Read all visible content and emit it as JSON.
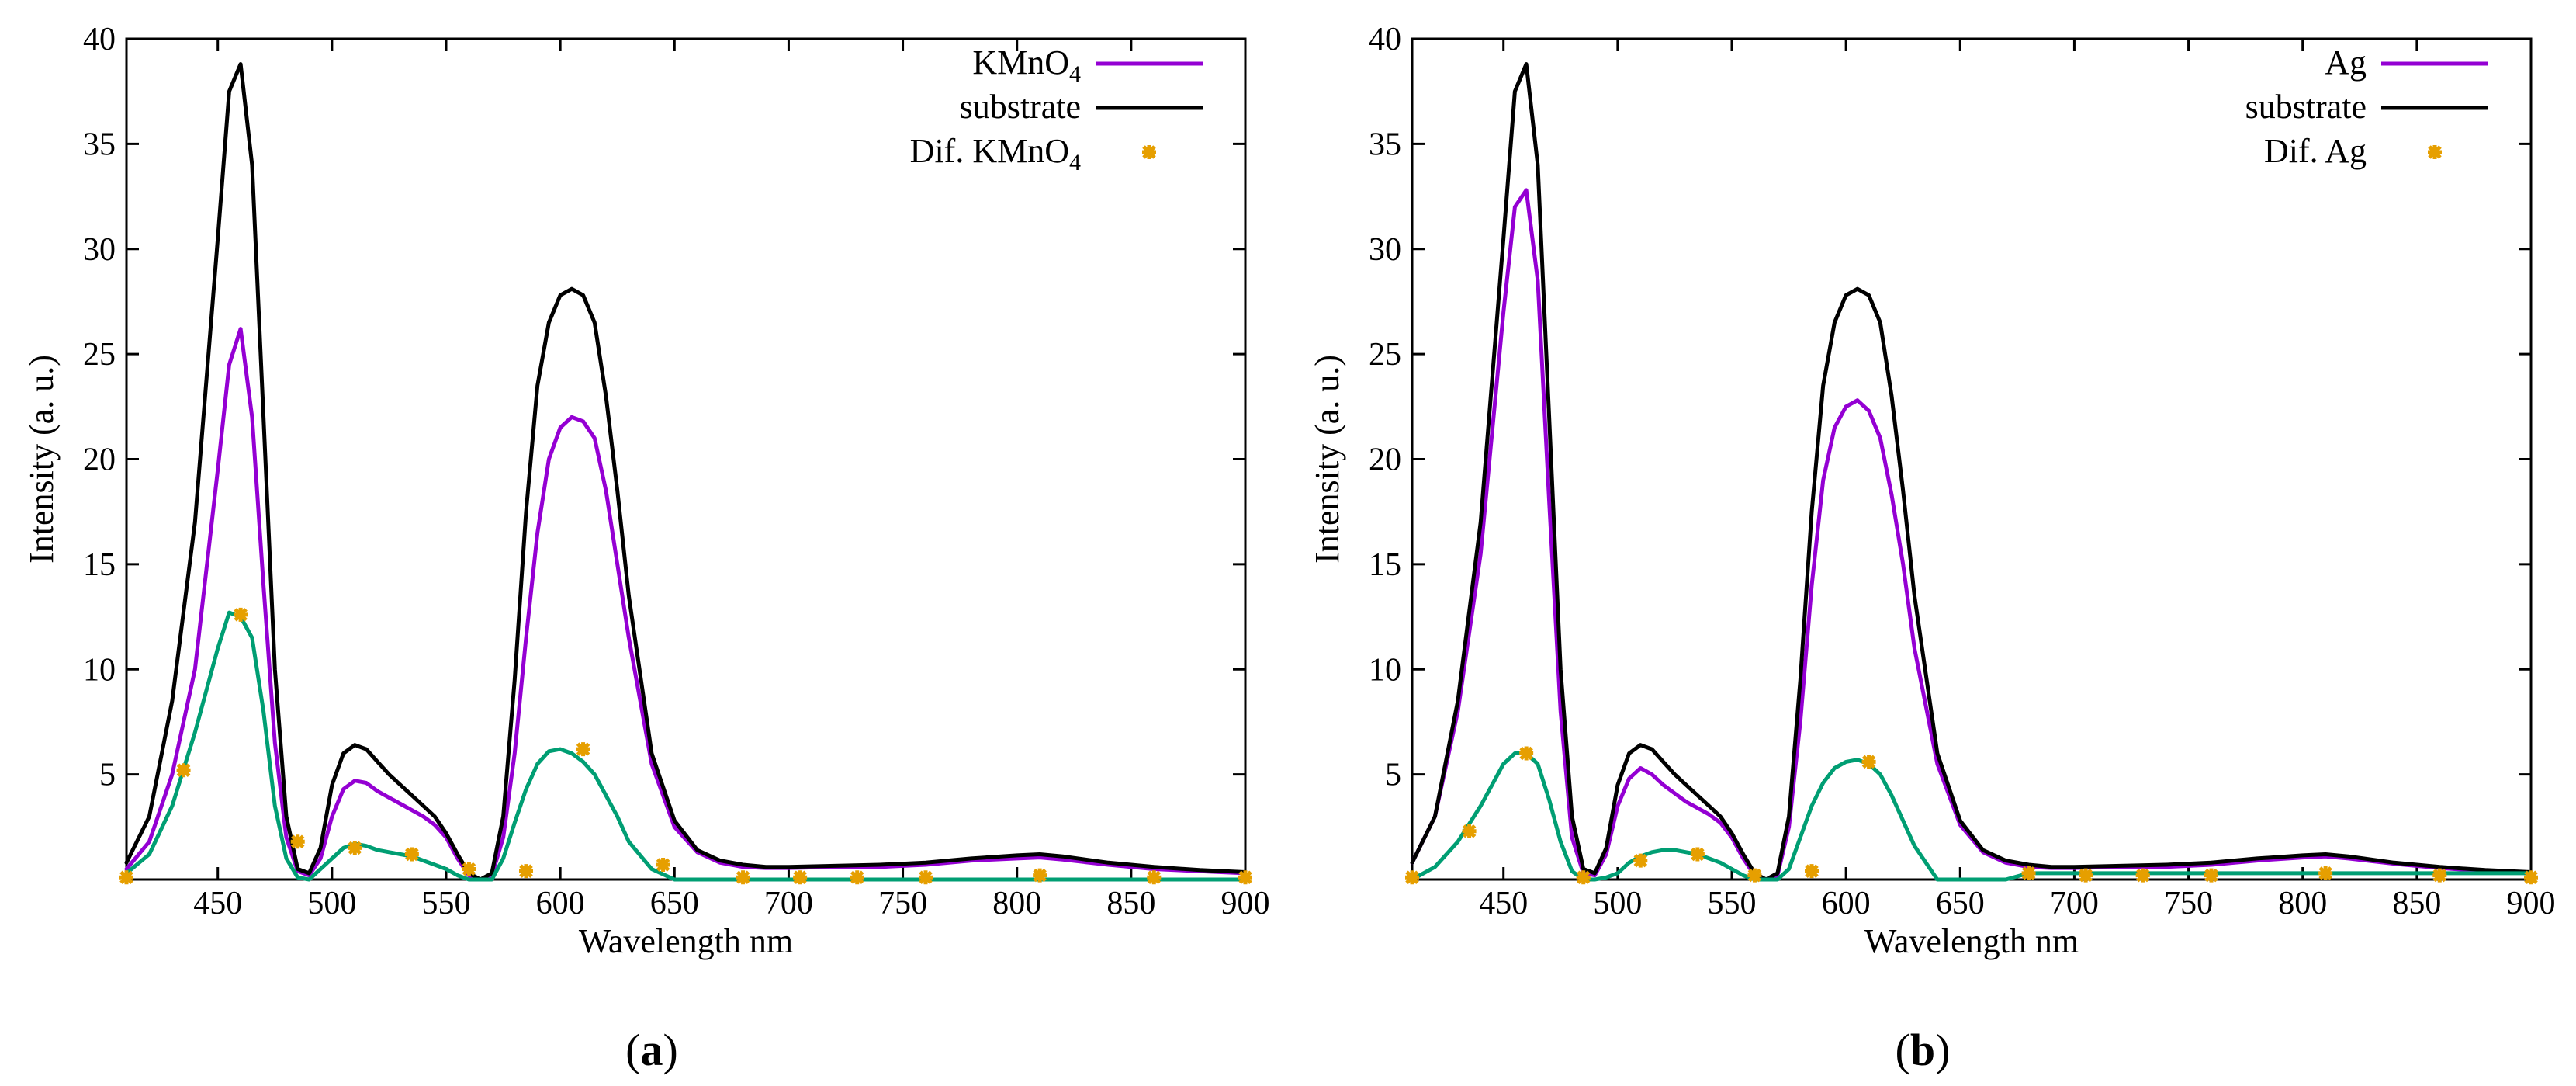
{
  "chart_data": [
    {
      "type": "line",
      "panel_label": "a",
      "xlabel": "Wavelength nm",
      "ylabel": "Intensity (a. u.)",
      "xlim": [
        410,
        900
      ],
      "ylim": [
        0,
        40
      ],
      "xticks": [
        450,
        500,
        550,
        600,
        650,
        700,
        750,
        800,
        850,
        900
      ],
      "yticks": [
        5,
        10,
        15,
        20,
        25,
        30,
        35,
        40
      ],
      "legend_position": "top-right",
      "colors": {
        "sample": "#9400d3",
        "substrate": "#000000",
        "dif_line": "#009e73",
        "dif_points": "#e69f00"
      },
      "series": [
        {
          "name": "KMnO4",
          "legend_main": "KMnO",
          "legend_sub": "4",
          "x": [
            410,
            420,
            430,
            440,
            450,
            455,
            460,
            465,
            470,
            475,
            480,
            485,
            490,
            495,
            500,
            505,
            510,
            515,
            520,
            525,
            530,
            535,
            540,
            545,
            550,
            555,
            560,
            565,
            570,
            575,
            580,
            585,
            590,
            595,
            600,
            605,
            610,
            615,
            620,
            625,
            630,
            640,
            650,
            660,
            670,
            680,
            690,
            700,
            720,
            740,
            760,
            780,
            800,
            810,
            820,
            840,
            860,
            880,
            900
          ],
          "y": [
            0.5,
            1.8,
            5.0,
            10.0,
            19.5,
            24.5,
            26.2,
            22.0,
            14.0,
            6.5,
            2.0,
            0.4,
            0.2,
            1.0,
            3.0,
            4.3,
            4.7,
            4.6,
            4.2,
            3.9,
            3.6,
            3.3,
            3.0,
            2.6,
            2.0,
            1.0,
            0.2,
            0.0,
            0.2,
            2.0,
            6.0,
            11.5,
            16.5,
            20.0,
            21.5,
            22.0,
            21.8,
            21.0,
            18.5,
            15.0,
            11.5,
            5.5,
            2.5,
            1.3,
            0.8,
            0.6,
            0.55,
            0.55,
            0.6,
            0.6,
            0.7,
            0.9,
            1.0,
            1.05,
            0.95,
            0.7,
            0.5,
            0.4,
            0.3
          ]
        },
        {
          "name": "substrate",
          "legend_main": "substrate",
          "x": [
            410,
            420,
            430,
            440,
            450,
            455,
            460,
            465,
            470,
            475,
            480,
            485,
            490,
            495,
            500,
            505,
            510,
            515,
            520,
            525,
            530,
            535,
            540,
            545,
            550,
            555,
            560,
            565,
            570,
            575,
            580,
            585,
            590,
            595,
            600,
            605,
            610,
            615,
            620,
            625,
            630,
            640,
            650,
            660,
            670,
            680,
            690,
            700,
            720,
            740,
            760,
            780,
            800,
            810,
            820,
            840,
            860,
            880,
            900
          ],
          "y": [
            0.8,
            3.0,
            8.5,
            17.0,
            30.5,
            37.5,
            38.8,
            34.0,
            22.0,
            10.0,
            3.0,
            0.5,
            0.3,
            1.5,
            4.5,
            6.0,
            6.4,
            6.2,
            5.6,
            5.0,
            4.5,
            4.0,
            3.5,
            3.0,
            2.2,
            1.2,
            0.3,
            0.0,
            0.3,
            3.0,
            9.5,
            17.5,
            23.5,
            26.5,
            27.8,
            28.1,
            27.8,
            26.5,
            23.0,
            18.5,
            13.5,
            6.0,
            2.8,
            1.4,
            0.9,
            0.7,
            0.6,
            0.6,
            0.65,
            0.7,
            0.8,
            1.0,
            1.15,
            1.2,
            1.1,
            0.8,
            0.6,
            0.45,
            0.35
          ]
        },
        {
          "name": "Dif. KMnO4",
          "legend_main": "Dif. KMnO",
          "legend_sub": "4",
          "x": [
            410,
            420,
            430,
            440,
            450,
            455,
            460,
            465,
            470,
            475,
            480,
            485,
            490,
            495,
            500,
            505,
            510,
            515,
            520,
            525,
            530,
            535,
            540,
            545,
            550,
            555,
            560,
            565,
            570,
            575,
            580,
            585,
            590,
            595,
            600,
            605,
            610,
            615,
            620,
            625,
            630,
            640,
            650,
            660,
            670,
            680,
            690,
            700,
            720,
            740,
            760,
            780,
            800,
            810,
            820,
            840,
            860,
            880,
            900
          ],
          "y": [
            0.3,
            1.2,
            3.5,
            7.0,
            11.0,
            12.7,
            12.5,
            11.5,
            8.0,
            3.5,
            1.0,
            0.1,
            0.0,
            0.5,
            1.0,
            1.5,
            1.7,
            1.6,
            1.4,
            1.3,
            1.2,
            1.1,
            0.9,
            0.7,
            0.5,
            0.2,
            0.0,
            0.0,
            0.0,
            1.0,
            2.7,
            4.3,
            5.5,
            6.1,
            6.2,
            6.0,
            5.6,
            5.0,
            4.0,
            3.0,
            1.8,
            0.5,
            0.0,
            0.0,
            0.0,
            0.0,
            0.0,
            0.0,
            0.0,
            0.0,
            0.0,
            0.0,
            0.0,
            0.0,
            0.0,
            0.0,
            0.0,
            0.0,
            0.0
          ]
        },
        {
          "name": "Dif. KMnO4 markers",
          "style": "points",
          "x": [
            410,
            435,
            460,
            485,
            510,
            535,
            560,
            585,
            610,
            645,
            680,
            705,
            730,
            760,
            810,
            860,
            900
          ],
          "y": [
            0.1,
            5.2,
            12.6,
            1.8,
            1.5,
            1.2,
            0.5,
            0.4,
            6.2,
            0.7,
            0.1,
            0.1,
            0.1,
            0.1,
            0.2,
            0.1,
            0.1
          ]
        }
      ]
    },
    {
      "type": "line",
      "panel_label": "b",
      "xlabel": "Wavelength nm",
      "ylabel": "Intensity (a. u.)",
      "xlim": [
        410,
        900
      ],
      "ylim": [
        0,
        40
      ],
      "xticks": [
        450,
        500,
        550,
        600,
        650,
        700,
        750,
        800,
        850,
        900
      ],
      "yticks": [
        5,
        10,
        15,
        20,
        25,
        30,
        35,
        40
      ],
      "legend_position": "top-right",
      "colors": {
        "sample": "#9400d3",
        "substrate": "#000000",
        "dif_line": "#009e73",
        "dif_points": "#e69f00"
      },
      "series": [
        {
          "name": "Ag",
          "legend_main": "Ag",
          "x": [
            410,
            420,
            430,
            440,
            450,
            455,
            460,
            465,
            470,
            475,
            480,
            485,
            490,
            495,
            500,
            505,
            510,
            515,
            520,
            525,
            530,
            535,
            540,
            545,
            550,
            555,
            560,
            565,
            570,
            575,
            580,
            585,
            590,
            595,
            600,
            605,
            610,
            615,
            620,
            625,
            630,
            640,
            650,
            660,
            670,
            680,
            690,
            700,
            720,
            740,
            760,
            780,
            800,
            810,
            820,
            840,
            860,
            880,
            900
          ],
          "y": [
            0.8,
            3.0,
            8.0,
            15.5,
            27.0,
            32.0,
            32.8,
            28.5,
            18.0,
            8.0,
            2.0,
            0.3,
            0.2,
            1.2,
            3.5,
            4.8,
            5.3,
            5.0,
            4.5,
            4.1,
            3.7,
            3.4,
            3.1,
            2.7,
            2.0,
            1.0,
            0.2,
            0.0,
            0.2,
            2.5,
            7.5,
            14.0,
            19.0,
            21.5,
            22.5,
            22.8,
            22.3,
            21.0,
            18.3,
            15.0,
            11.0,
            5.5,
            2.6,
            1.3,
            0.8,
            0.6,
            0.55,
            0.55,
            0.6,
            0.6,
            0.7,
            0.9,
            1.05,
            1.1,
            1.0,
            0.75,
            0.55,
            0.4,
            0.3
          ]
        },
        {
          "name": "substrate",
          "legend_main": "substrate",
          "x": [
            410,
            420,
            430,
            440,
            450,
            455,
            460,
            465,
            470,
            475,
            480,
            485,
            490,
            495,
            500,
            505,
            510,
            515,
            520,
            525,
            530,
            535,
            540,
            545,
            550,
            555,
            560,
            565,
            570,
            575,
            580,
            585,
            590,
            595,
            600,
            605,
            610,
            615,
            620,
            625,
            630,
            640,
            650,
            660,
            670,
            680,
            690,
            700,
            720,
            740,
            760,
            780,
            800,
            810,
            820,
            840,
            860,
            880,
            900
          ],
          "y": [
            0.8,
            3.0,
            8.5,
            17.0,
            30.5,
            37.5,
            38.8,
            34.0,
            22.0,
            10.0,
            3.0,
            0.5,
            0.3,
            1.5,
            4.5,
            6.0,
            6.4,
            6.2,
            5.6,
            5.0,
            4.5,
            4.0,
            3.5,
            3.0,
            2.2,
            1.2,
            0.3,
            0.0,
            0.3,
            3.0,
            9.5,
            17.5,
            23.5,
            26.5,
            27.8,
            28.1,
            27.8,
            26.5,
            23.0,
            18.5,
            13.5,
            6.0,
            2.8,
            1.4,
            0.9,
            0.7,
            0.6,
            0.6,
            0.65,
            0.7,
            0.8,
            1.0,
            1.15,
            1.2,
            1.1,
            0.8,
            0.6,
            0.45,
            0.35
          ]
        },
        {
          "name": "Dif. Ag",
          "legend_main": "Dif. Ag",
          "x": [
            410,
            420,
            430,
            440,
            450,
            455,
            460,
            465,
            470,
            475,
            480,
            485,
            490,
            495,
            500,
            505,
            510,
            515,
            520,
            525,
            530,
            535,
            540,
            545,
            550,
            555,
            560,
            565,
            570,
            575,
            580,
            585,
            590,
            595,
            600,
            605,
            610,
            615,
            620,
            625,
            630,
            640,
            650,
            660,
            670,
            680,
            690,
            700,
            720,
            740,
            760,
            780,
            800,
            810,
            820,
            840,
            860,
            880,
            900
          ],
          "y": [
            0.0,
            0.6,
            1.8,
            3.5,
            5.5,
            6.0,
            6.0,
            5.5,
            3.8,
            1.8,
            0.4,
            0.0,
            0.0,
            0.1,
            0.3,
            0.8,
            1.1,
            1.3,
            1.4,
            1.4,
            1.3,
            1.2,
            1.0,
            0.8,
            0.5,
            0.2,
            0.0,
            0.0,
            0.0,
            0.5,
            2.0,
            3.5,
            4.6,
            5.3,
            5.6,
            5.7,
            5.5,
            5.0,
            4.0,
            2.8,
            1.6,
            0.0,
            0.0,
            0.0,
            0.0,
            0.3,
            0.3,
            0.3,
            0.3,
            0.3,
            0.3,
            0.3,
            0.3,
            0.3,
            0.3,
            0.3,
            0.3,
            0.3,
            0.3
          ]
        },
        {
          "name": "Dif. Ag markers",
          "style": "points",
          "x": [
            410,
            435,
            460,
            485,
            510,
            535,
            560,
            585,
            610,
            680,
            705,
            730,
            760,
            810,
            860,
            900
          ],
          "y": [
            0.1,
            2.3,
            6.0,
            0.1,
            0.9,
            1.2,
            0.2,
            0.4,
            5.6,
            0.3,
            0.2,
            0.2,
            0.2,
            0.3,
            0.2,
            0.1
          ]
        }
      ]
    }
  ]
}
